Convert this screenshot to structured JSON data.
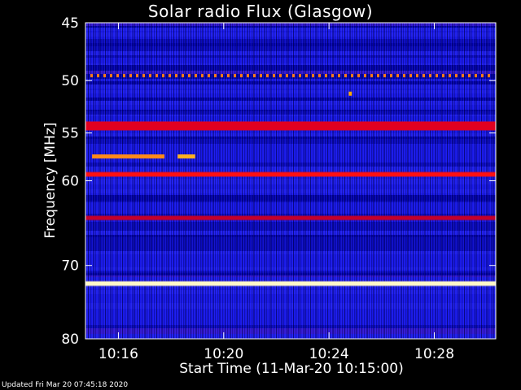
{
  "chart_data": {
    "type": "heatmap",
    "title": "Solar radio Flux (Glasgow)",
    "xlabel": "Start Time (11-Mar-20 10:15:00)",
    "ylabel": "Frequency [MHz]",
    "x_unit": "time",
    "xlim": [
      "10:14:45",
      "10:30:20"
    ],
    "ylim": [
      45,
      80
    ],
    "y_reversed": true,
    "y_scale": "log",
    "x_ticks": [
      "10:16",
      "10:20",
      "10:24",
      "10:28"
    ],
    "y_ticks": [
      45,
      50,
      55,
      60,
      70,
      80
    ],
    "bands": [
      {
        "freq_from": 49.4,
        "freq_to": 49.7,
        "color": "#ff7a1a",
        "pattern": "dashed"
      },
      {
        "freq_from": 53.9,
        "freq_to": 54.7,
        "color": "#e00020"
      },
      {
        "freq_from": 59.1,
        "freq_to": 59.5,
        "color": "#ff1010"
      },
      {
        "freq_from": 64.0,
        "freq_to": 64.4,
        "color": "#c4002a"
      },
      {
        "freq_from": 72.1,
        "freq_to": 72.6,
        "color": "#fff6c8"
      }
    ],
    "bursts": [
      {
        "freq": 57.4,
        "time_from": "10:15:00",
        "time_to": "10:17:45",
        "color": "#ff8a1a"
      },
      {
        "freq": 57.4,
        "time_from": "10:18:15",
        "time_to": "10:18:55",
        "color": "#ffb020"
      },
      {
        "freq": 51.2,
        "time_from": "10:24:45",
        "time_to": "10:24:52",
        "color": "#ffaa00"
      }
    ]
  },
  "footer": {
    "updated": "Updated Fri Mar 20 07:45:18 2020"
  }
}
